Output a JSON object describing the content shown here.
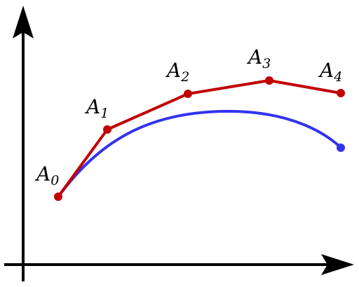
{
  "colors": {
    "axes": "#000000",
    "control_polygon": "#c00000",
    "curve": "#3333ee"
  },
  "points": [
    {
      "letter": "A",
      "index": "0"
    },
    {
      "letter": "A",
      "index": "1"
    },
    {
      "letter": "A",
      "index": "2"
    },
    {
      "letter": "A",
      "index": "3"
    },
    {
      "letter": "A",
      "index": "4"
    }
  ]
}
